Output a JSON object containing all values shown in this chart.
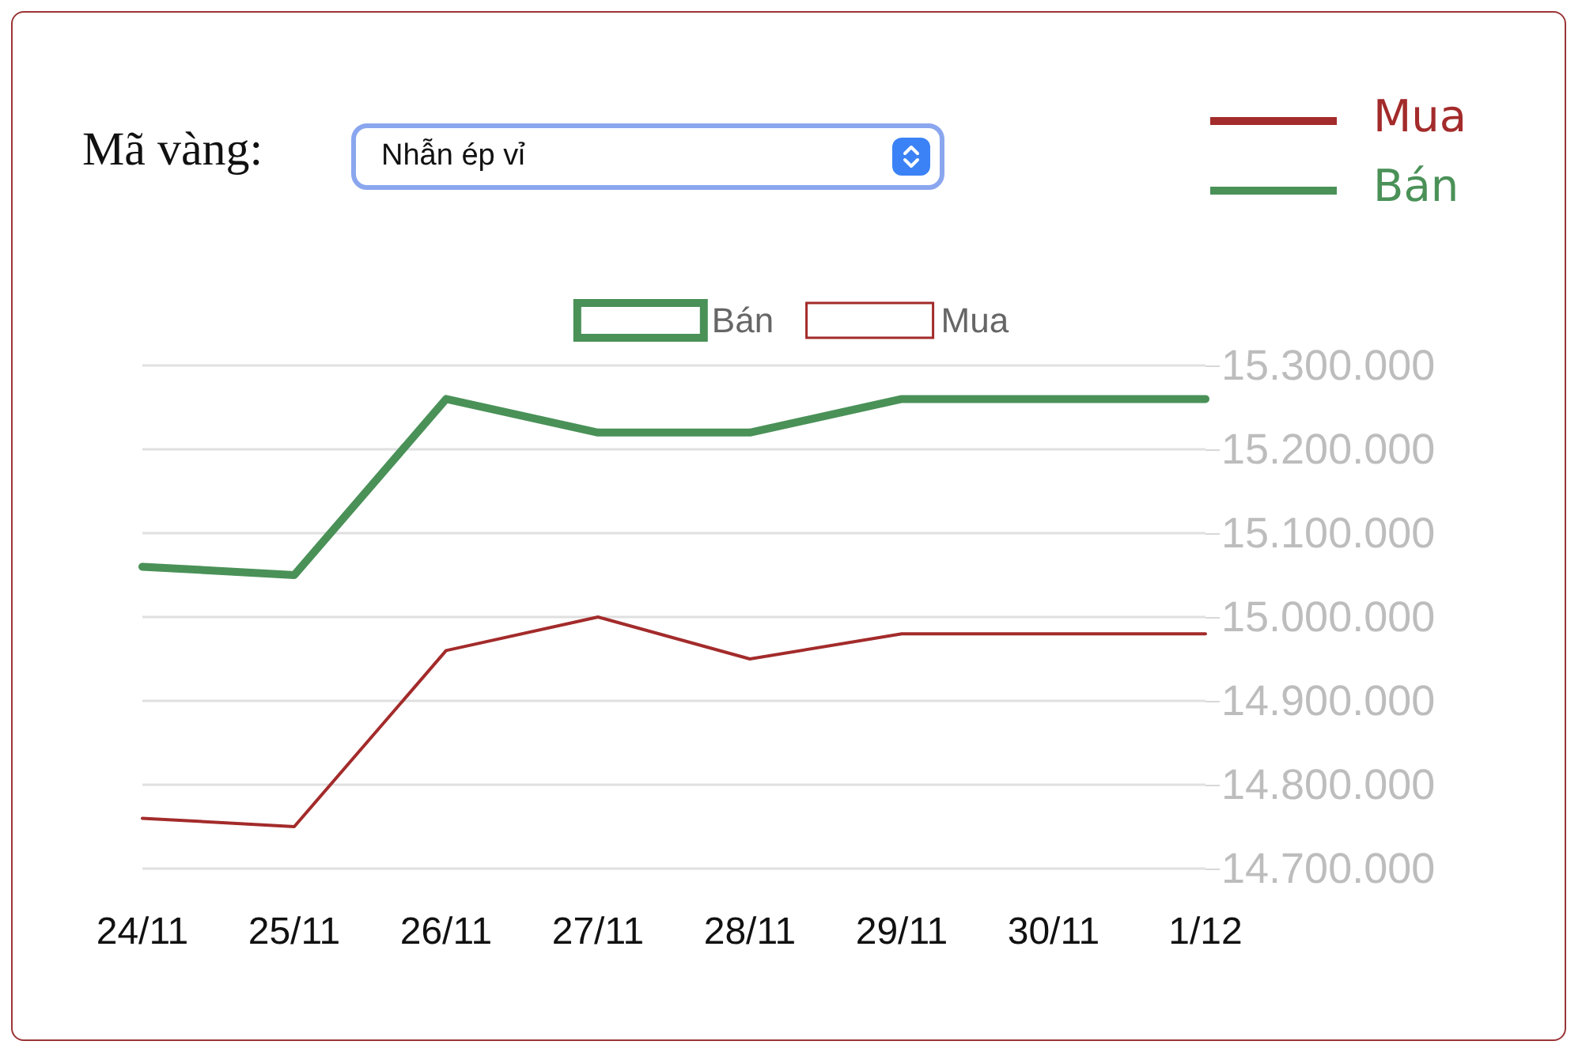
{
  "chart_data": {
    "type": "line",
    "annotations": [
      "Mã vàng:",
      "Nhẫn ép vỉ"
    ],
    "categories": [
      "24/11",
      "25/11",
      "26/11",
      "27/11",
      "28/11",
      "29/11",
      "30/11",
      "1/12"
    ],
    "series": [
      {
        "name": "Bán",
        "color": "#4a9158",
        "values": [
          15060000,
          15050000,
          15260000,
          15220000,
          15220000,
          15260000,
          15260000,
          15260000
        ]
      },
      {
        "name": "Mua",
        "color": "#a32b2b",
        "values": [
          14760000,
          14750000,
          14960000,
          15000000,
          14950000,
          14980000,
          14980000,
          14980000
        ]
      }
    ],
    "ylim": [
      14700000,
      15300000
    ],
    "yticks": [
      {
        "value": 14700000,
        "label": "14.700.000"
      },
      {
        "value": 14800000,
        "label": "14.800.000"
      },
      {
        "value": 14900000,
        "label": "14.900.000"
      },
      {
        "value": 15000000,
        "label": "15.000.000"
      },
      {
        "value": 15100000,
        "label": "15.100.000"
      },
      {
        "value": 15200000,
        "label": "15.200.000"
      },
      {
        "value": 15300000,
        "label": "15.300.000"
      }
    ],
    "grid": "y",
    "legend": "top",
    "marker": "none",
    "line_style": "solid"
  }
}
